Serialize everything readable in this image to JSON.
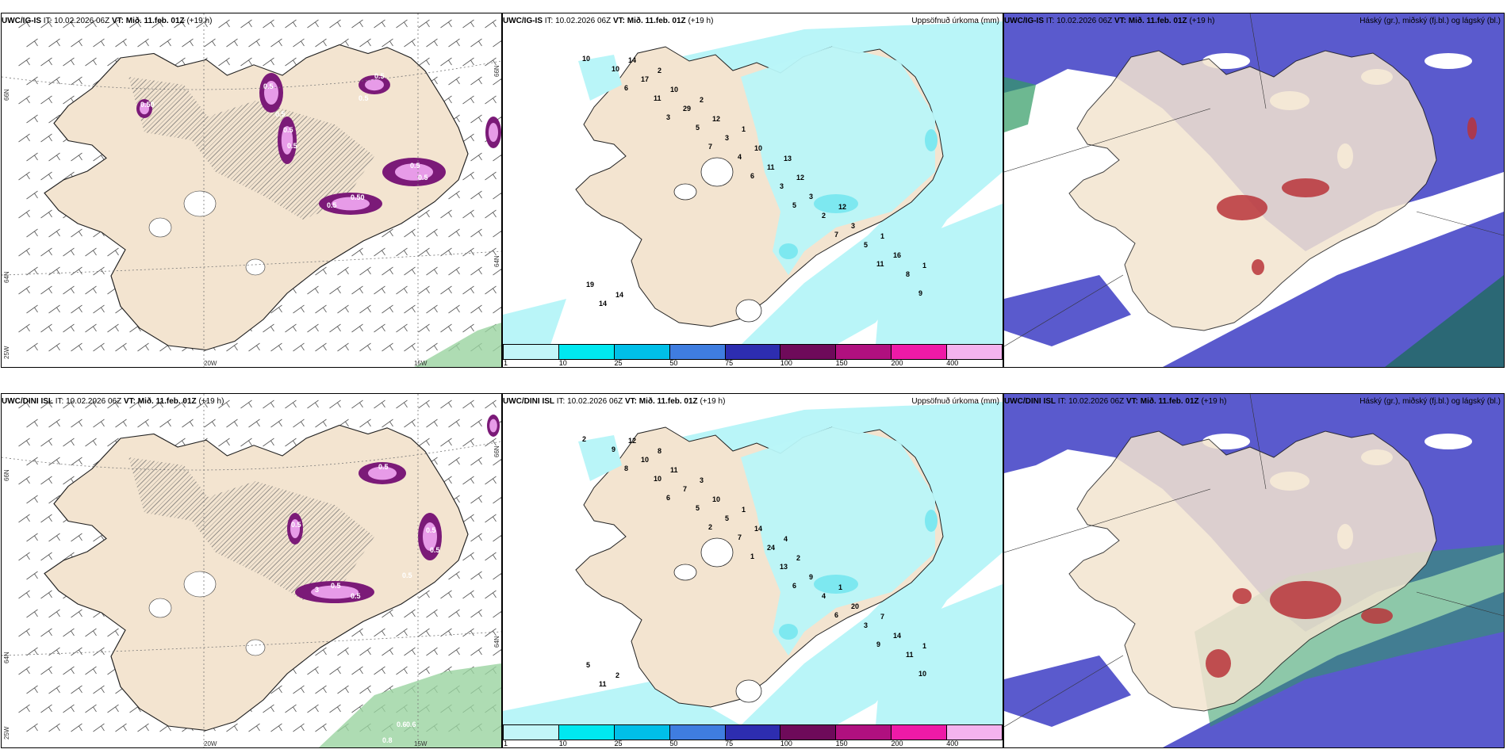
{
  "colors": {
    "land": "#f3e4d0",
    "sea": "#ffffff",
    "precip_light": "#b9f5f8",
    "precip_mid": "#7de8f0",
    "purple_dark": "#7b1a78",
    "purple_light": "#e79be8",
    "cloud_high": "#b8343a",
    "cloud_mid": "#2f9a62",
    "cloud_low": "#5a5acd",
    "green_sea": "#9ad3a0"
  },
  "rows": [
    {
      "model": "UWC/IG-IS",
      "it_label": "IT:",
      "it_value": "10.02.2026 06Z",
      "vt_label": "VT:",
      "vt_value": "Mið. 11.feb. 01Z",
      "lead": "(+19 h)",
      "precip_title": "Uppsöfnuð úrkoma (mm)",
      "cloud_title": "Háský (gr.), miðský (fj.bl.) og lágský (bl.)",
      "wind_axis": {
        "lat_left_top": "66N",
        "lat_left_mid": "64N",
        "lon_left_bottom": "25W",
        "lon_bottom_mid": "20W",
        "lon_bottom_right": "15W",
        "lat_right_top": "66N",
        "lat_right_mid": "64N"
      },
      "wind_values": [
        "0.5",
        "0.5",
        "0.5",
        "0.5",
        "0.50",
        "0.50",
        "0.5",
        "0.5",
        "0.5",
        "0.5",
        "0.5"
      ],
      "precip_values": [
        "10",
        "6",
        "3",
        "7",
        "6",
        "5",
        "7",
        "11",
        "9",
        "10",
        "11",
        "5",
        "4",
        "3",
        "2",
        "5",
        "8",
        "14",
        "17",
        "29",
        "3",
        "11",
        "3",
        "3",
        "16",
        "19",
        "14",
        "10",
        "12",
        "10",
        "12",
        "12",
        "1",
        "1",
        "14",
        "2",
        "2",
        "1",
        "13"
      ]
    },
    {
      "model": "UWC/DINI ISL",
      "it_label": "IT:",
      "it_value": "10.02.2026 06Z",
      "vt_label": "VT:",
      "vt_value": "Mið. 11.feb. 01Z",
      "lead": "(+19 h)",
      "precip_title": "Uppsöfnuð úrkoma (mm)",
      "cloud_title": "Háský (gr.), miðský (fj.bl.) og lágský (bl.)",
      "wind_axis": {
        "lat_left_top": "66N",
        "lat_left_mid": "64N",
        "lon_left_bottom": "25W",
        "lon_bottom_mid": "20W",
        "lon_bottom_right": "15W",
        "lat_right_top": "66N",
        "lat_right_mid": "64N"
      },
      "wind_values": [
        "0.5",
        "0.5",
        "0.5",
        "0.5",
        "0.5",
        "0.5",
        "0.5",
        "3",
        "0.8",
        "0.6",
        "0.6"
      ],
      "precip_values": [
        "2",
        "8",
        "6",
        "2",
        "1",
        "6",
        "6",
        "9",
        "10",
        "9",
        "10",
        "5",
        "7",
        "13",
        "4",
        "3",
        "11",
        "11",
        "10",
        "7",
        "5",
        "24",
        "9",
        "20",
        "14",
        "5",
        "12",
        "11",
        "10",
        "14",
        "2",
        "1",
        "7",
        "1",
        "2",
        "8",
        "3",
        "1",
        "4"
      ]
    }
  ],
  "colorbar": {
    "ticks": [
      "1",
      "10",
      "25",
      "50",
      "75",
      "100",
      "150",
      "200",
      "400"
    ],
    "swatches": [
      "#c2f6f8",
      "#00e8f0",
      "#00bfe8",
      "#3f7de0",
      "#2d2db0",
      "#6e0a5a",
      "#b0107f",
      "#ee1aa7",
      "#f4b3ee"
    ]
  }
}
